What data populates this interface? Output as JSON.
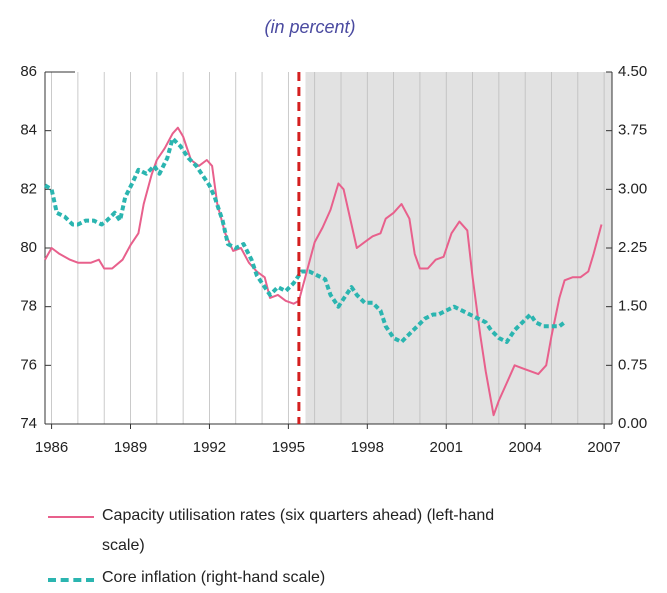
{
  "chart_data": {
    "type": "line",
    "title": "(in percent)",
    "xlim": [
      1985.75,
      2007.3
    ],
    "xticks": [
      1986,
      1989,
      1992,
      1995,
      1998,
      2001,
      2004,
      2007
    ],
    "xgrid": [
      1986,
      1987,
      1988,
      1989,
      1990,
      1991,
      1992,
      1993,
      1994,
      1995,
      1996,
      1997,
      1998,
      1999,
      2000,
      2001,
      2002,
      2003,
      2004,
      2005,
      2006,
      2007
    ],
    "ylim": [
      74,
      86
    ],
    "yticks": [
      74,
      76,
      78,
      80,
      82,
      84,
      86
    ],
    "y2lim": [
      0,
      4.5
    ],
    "y2ticks": [
      {
        "value": 0,
        "label": "0.00"
      },
      {
        "value": 0.75,
        "label": "0.75"
      },
      {
        "value": 1.5,
        "label": "1.50"
      },
      {
        "value": 2.25,
        "label": "2.25"
      },
      {
        "value": 3,
        "label": "3.00"
      },
      {
        "value": 3.75,
        "label": "3.75"
      },
      {
        "value": 4.5,
        "label": "4.50"
      }
    ],
    "vline": 1995.4,
    "vline_color": "#d42020",
    "shade_start": 1995.65,
    "shade_color": "#e2e2e2",
    "series": [
      {
        "name": "Capacity utilisation rates (six quarters ahead) (left-hand scale)",
        "color": "#e8608c",
        "dashed": false,
        "axis": "y",
        "x": [
          1985.75,
          1986.0,
          1986.3,
          1986.7,
          1987.0,
          1987.5,
          1987.8,
          1988.0,
          1988.3,
          1988.7,
          1989.0,
          1989.3,
          1989.5,
          1989.8,
          1990.0,
          1990.3,
          1990.6,
          1990.8,
          1991.0,
          1991.3,
          1991.6,
          1991.9,
          1992.1,
          1992.3,
          1992.6,
          1992.9,
          1993.2,
          1993.5,
          1993.8,
          1994.1,
          1994.3,
          1994.6,
          1994.9,
          1995.2,
          1995.4,
          1995.7,
          1996.0,
          1996.3,
          1996.6,
          1996.9,
          1997.1,
          1997.4,
          1997.6,
          1997.9,
          1998.2,
          1998.5,
          1998.7,
          1999.0,
          1999.3,
          1999.6,
          1999.8,
          2000.0,
          2000.3,
          2000.6,
          2000.9,
          2001.2,
          2001.5,
          2001.8,
          2002.0,
          2002.3,
          2002.5,
          2002.8,
          2003.0,
          2003.3,
          2003.6,
          2003.9,
          2004.2,
          2004.5,
          2004.8,
          2005.0,
          2005.3,
          2005.5,
          2005.8,
          2006.1,
          2006.4,
          2006.6,
          2006.9
        ],
        "values": [
          79.6,
          80.0,
          79.8,
          79.6,
          79.5,
          79.5,
          79.6,
          79.3,
          79.3,
          79.6,
          80.1,
          80.5,
          81.5,
          82.5,
          83.0,
          83.4,
          83.9,
          84.1,
          83.8,
          83.0,
          82.8,
          83.0,
          82.8,
          81.5,
          80.5,
          79.9,
          80.0,
          79.5,
          79.2,
          79.0,
          78.3,
          78.4,
          78.2,
          78.1,
          78.2,
          79.2,
          80.2,
          80.7,
          81.3,
          82.2,
          82.0,
          80.8,
          80.0,
          80.2,
          80.4,
          80.5,
          81.0,
          81.2,
          81.5,
          81.0,
          79.8,
          79.3,
          79.3,
          79.6,
          79.7,
          80.5,
          80.9,
          80.6,
          79.0,
          77.0,
          75.8,
          74.3,
          74.8,
          75.4,
          76.0,
          75.9,
          75.8,
          75.7,
          76.0,
          77.0,
          78.3,
          78.9,
          79.0,
          79.0,
          79.2,
          79.8,
          80.8
        ]
      },
      {
        "name": "Core inflation (right-hand scale)",
        "color": "#2bb5b0",
        "dashed": true,
        "axis": "y2",
        "x": [
          1985.75,
          1986.0,
          1986.2,
          1986.5,
          1986.8,
          1987.0,
          1987.3,
          1987.6,
          1987.9,
          1988.1,
          1988.4,
          1988.6,
          1988.8,
          1989.1,
          1989.3,
          1989.6,
          1989.9,
          1990.1,
          1990.4,
          1990.6,
          1990.9,
          1991.2,
          1991.5,
          1991.7,
          1992.0,
          1992.2,
          1992.5,
          1992.7,
          1993.0,
          1993.3,
          1993.6,
          1993.8,
          1994.0,
          1994.3,
          1994.6,
          1994.9,
          1995.2,
          1995.5,
          1995.8,
          1996.1,
          1996.4,
          1996.6,
          1996.9,
          1997.1,
          1997.4,
          1997.6,
          1997.9,
          1998.2,
          1998.5,
          1998.7,
          1999.0,
          1999.3,
          1999.6,
          1999.9,
          2000.2,
          2000.5,
          2000.7,
          2001.0,
          2001.3,
          2001.6,
          2001.9,
          2002.2,
          2002.5,
          2002.7,
          2003.0,
          2003.3,
          2003.6,
          2003.9,
          2004.2,
          2004.4,
          2004.7,
          2005.0,
          2005.3,
          2005.5
        ],
        "values": [
          3.05,
          3.0,
          2.7,
          2.65,
          2.55,
          2.55,
          2.6,
          2.6,
          2.55,
          2.6,
          2.7,
          2.6,
          2.9,
          3.1,
          3.25,
          3.2,
          3.3,
          3.2,
          3.4,
          3.65,
          3.55,
          3.4,
          3.3,
          3.2,
          3.05,
          2.9,
          2.6,
          2.3,
          2.25,
          2.3,
          2.1,
          1.9,
          1.8,
          1.65,
          1.75,
          1.7,
          1.8,
          1.95,
          1.95,
          1.9,
          1.85,
          1.65,
          1.5,
          1.6,
          1.75,
          1.65,
          1.55,
          1.55,
          1.45,
          1.25,
          1.1,
          1.05,
          1.15,
          1.25,
          1.35,
          1.4,
          1.4,
          1.45,
          1.5,
          1.45,
          1.4,
          1.35,
          1.3,
          1.2,
          1.1,
          1.05,
          1.2,
          1.3,
          1.4,
          1.3,
          1.25,
          1.25,
          1.25,
          1.3
        ]
      }
    ]
  }
}
